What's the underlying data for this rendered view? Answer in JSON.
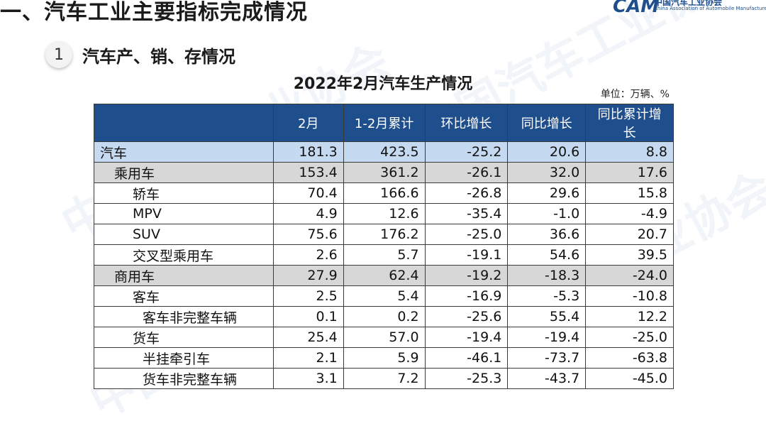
{
  "section_title": "一、汽车工业主要指标完成情况",
  "logo": {
    "mark": "CAM",
    "name_cn": "中国汽车工业协会",
    "name_en": "China Association of Automobile Manufacturers"
  },
  "subsection": {
    "number": "1",
    "title": "汽车产、销、存情况"
  },
  "table_title": "2022年2月汽车生产情况",
  "unit": "单位：万辆、%",
  "columns": [
    "",
    "2月",
    "1-2月累计",
    "环比增长",
    "同比增长",
    "同比累计增长"
  ],
  "rows": [
    {
      "name": "汽车",
      "level": 0,
      "values": [
        "181.3",
        "423.5",
        "-25.2",
        "20.6",
        "8.8"
      ]
    },
    {
      "name": "乘用车",
      "level": 1,
      "values": [
        "153.4",
        "361.2",
        "-26.1",
        "32.0",
        "17.6"
      ]
    },
    {
      "name": "轿车",
      "level": 2,
      "values": [
        "70.4",
        "166.6",
        "-26.8",
        "29.6",
        "15.8"
      ]
    },
    {
      "name": "MPV",
      "level": 2,
      "values": [
        "4.9",
        "12.6",
        "-35.4",
        "-1.0",
        "-4.9"
      ]
    },
    {
      "name": "SUV",
      "level": 2,
      "values": [
        "75.6",
        "176.2",
        "-25.0",
        "36.6",
        "20.7"
      ]
    },
    {
      "name": "交叉型乘用车",
      "level": 2,
      "values": [
        "2.6",
        "5.7",
        "-19.1",
        "54.6",
        "39.5"
      ]
    },
    {
      "name": "商用车",
      "level": 1,
      "values": [
        "27.9",
        "62.4",
        "-19.2",
        "-18.3",
        "-24.0"
      ]
    },
    {
      "name": "客车",
      "level": 2,
      "values": [
        "2.5",
        "5.4",
        "-16.9",
        "-5.3",
        "-10.8"
      ]
    },
    {
      "name": "客车非完整车辆",
      "level": 3,
      "values": [
        "0.1",
        "0.2",
        "-25.6",
        "55.4",
        "12.2"
      ]
    },
    {
      "name": "货车",
      "level": 2,
      "values": [
        "25.4",
        "57.0",
        "-19.4",
        "-19.4",
        "-25.0"
      ]
    },
    {
      "name": "半挂牵引车",
      "level": 3,
      "values": [
        "2.1",
        "5.9",
        "-46.1",
        "-73.7",
        "-63.8"
      ]
    },
    {
      "name": "货车非完整车辆",
      "level": 3,
      "values": [
        "3.1",
        "7.2",
        "-25.3",
        "-43.7",
        "-45.0"
      ]
    }
  ],
  "colors": {
    "header_bg": "#1f4e8c",
    "total_row_bg": "#c5d9f0",
    "category_row_bg": "#d7d7d7"
  }
}
